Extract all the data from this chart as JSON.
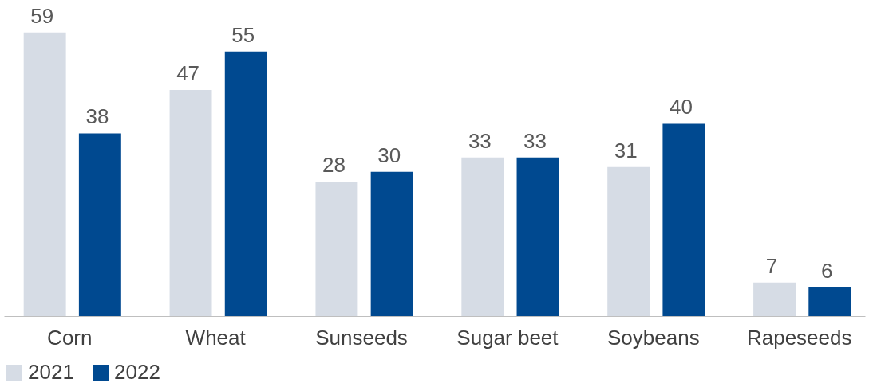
{
  "chart_data": {
    "type": "bar",
    "categories": [
      "Corn",
      "Wheat",
      "Sunseeds",
      "Sugar beet",
      "Soybeans",
      "Rapeseeds"
    ],
    "series": [
      {
        "name": "2021",
        "color": "#d6dce5",
        "values": [
          59,
          47,
          28,
          33,
          31,
          7
        ]
      },
      {
        "name": "2022",
        "color": "#004990",
        "values": [
          38,
          55,
          30,
          33,
          40,
          6
        ]
      }
    ],
    "data_labels": true,
    "legend": "bottom",
    "grid": false,
    "tick_labels": "x"
  }
}
